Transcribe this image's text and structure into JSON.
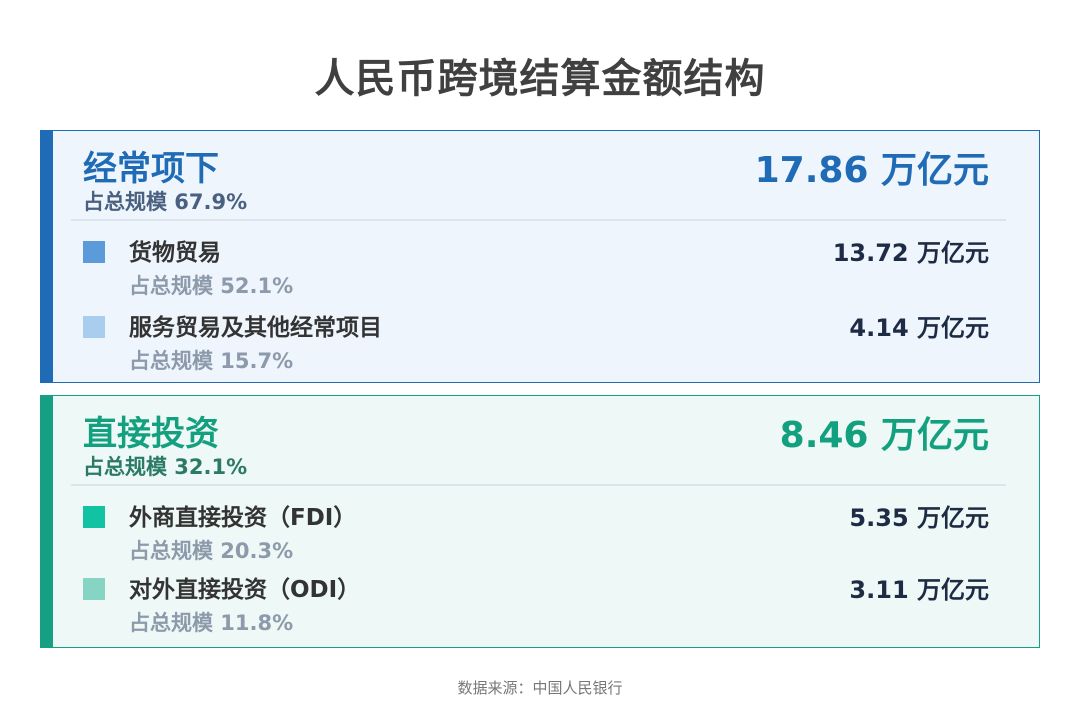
{
  "title": "人民币跨境结算金额结构",
  "sections": [
    {
      "title": "经常项下",
      "share": "占总规模 67.9%",
      "value": "17.86 万亿元",
      "color": "#1f6bb5",
      "items": [
        {
          "label": "货物贸易",
          "share": "占总规模 52.1%",
          "value": "13.72 万亿元",
          "color": "#5b9bd9"
        },
        {
          "label": "服务贸易及其他经常项目",
          "share": "占总规模 15.7%",
          "value": "4.14 万亿元",
          "color": "#a8cdef"
        }
      ]
    },
    {
      "title": "直接投资",
      "share": "占总规模 32.1%",
      "value": "8.46 万亿元",
      "color": "#13a07f",
      "items": [
        {
          "label": "外商直接投资（FDI）",
          "share": "占总规模 20.3%",
          "value": "5.35 万亿元",
          "color": "#12c3a3"
        },
        {
          "label": "对外直接投资（ODI）",
          "share": "占总规模 11.8%",
          "value": "3.11 万亿元",
          "color": "#86d4c3"
        }
      ]
    }
  ],
  "footer": "数据来源：中国人民银行"
}
